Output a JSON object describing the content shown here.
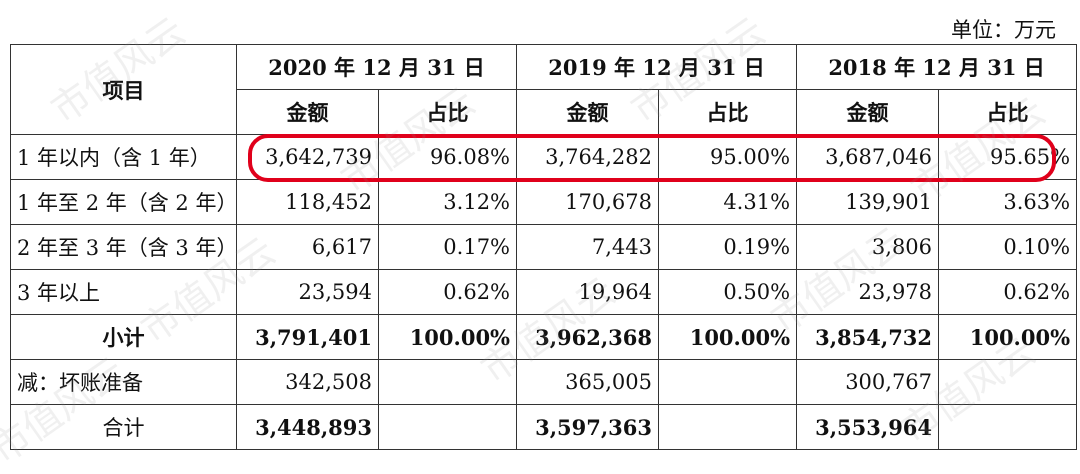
{
  "unit": "单位：万元",
  "header": {
    "item": "项目",
    "periods": [
      "2020 年 12 月 31 日",
      "2019 年 12 月 31 日",
      "2018 年 12 月 31 日"
    ],
    "amount": "金额",
    "ratio": "占比"
  },
  "rows": [
    {
      "label": "1 年以内（含 1 年）",
      "v": [
        "3,642,739",
        "96.08%",
        "3,764,282",
        "95.00%",
        "3,687,046",
        "95.65%"
      ]
    },
    {
      "label": "1 年至 2 年（含 2 年）",
      "v": [
        "118,452",
        "3.12%",
        "170,678",
        "4.31%",
        "139,901",
        "3.63%"
      ]
    },
    {
      "label": "2 年至 3 年（含 3 年）",
      "v": [
        "6,617",
        "0.17%",
        "7,443",
        "0.19%",
        "3,806",
        "0.10%"
      ]
    },
    {
      "label": "3 年以上",
      "v": [
        "23,594",
        "0.62%",
        "19,964",
        "0.50%",
        "23,978",
        "0.62%"
      ]
    },
    {
      "label": "小计",
      "v": [
        "3,791,401",
        "100.00%",
        "3,962,368",
        "100.00%",
        "3,854,732",
        "100.00%"
      ]
    },
    {
      "label": "减：坏账准备",
      "v": [
        "342,508",
        "",
        "365,005",
        "",
        "300,767",
        ""
      ]
    },
    {
      "label": "合计",
      "v": [
        "3,448,893",
        "",
        "3,597,363",
        "",
        "3,553,964",
        ""
      ]
    }
  ],
  "watermark": "市值风云"
}
